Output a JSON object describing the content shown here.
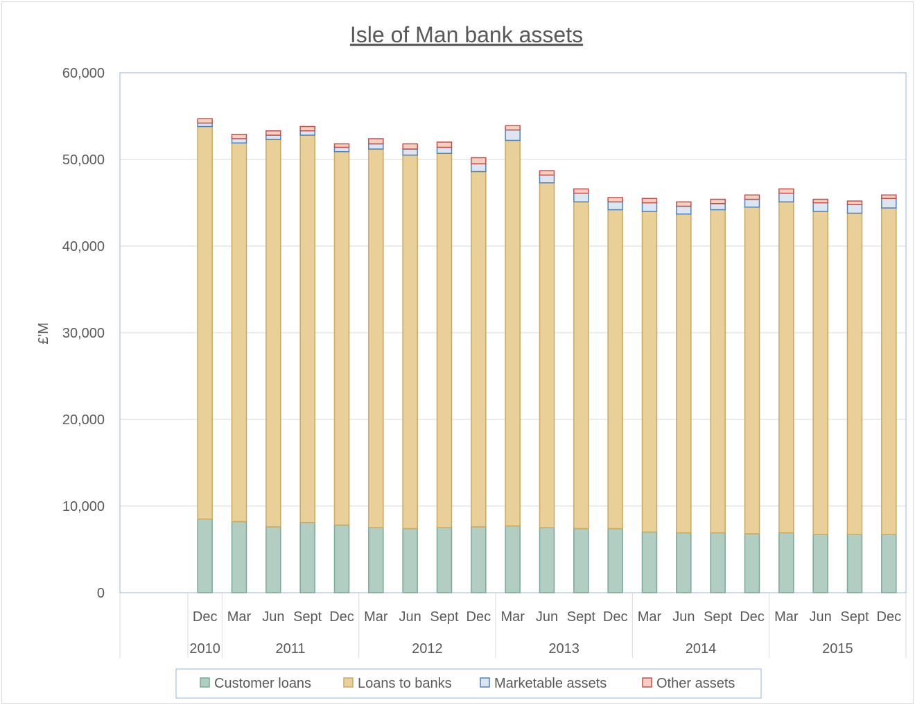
{
  "chart_data": {
    "type": "bar",
    "stacked": true,
    "title": "Isle of Man bank assets",
    "ylabel": "£'M",
    "xlabel": "",
    "ylim": [
      0,
      60000
    ],
    "yticks": [
      0,
      10000,
      20000,
      30000,
      40000,
      50000,
      60000
    ],
    "ytick_labels": [
      "0",
      "10,000",
      "20,000",
      "30,000",
      "40,000",
      "50,000",
      "60,000"
    ],
    "grid": true,
    "legend_position": "bottom",
    "categories": [
      "Dec",
      "Mar",
      "Jun",
      "Sept",
      "Dec",
      "Mar",
      "Jun",
      "Sept",
      "Dec",
      "Mar",
      "Jun",
      "Sept",
      "Dec",
      "Mar",
      "Jun",
      "Sept",
      "Dec",
      "Mar",
      "Jun",
      "Sept",
      "Dec"
    ],
    "year_groups": [
      {
        "label": "2010",
        "count": 1
      },
      {
        "label": "2011",
        "count": 4
      },
      {
        "label": "2012",
        "count": 4
      },
      {
        "label": "2013",
        "count": 4
      },
      {
        "label": "2014",
        "count": 4
      },
      {
        "label": "2015",
        "count": 4
      }
    ],
    "series": [
      {
        "name": "Customer loans",
        "color": "#b2cec3",
        "stroke": "#79a897",
        "values": [
          8500,
          8200,
          7600,
          8100,
          7800,
          7500,
          7400,
          7500,
          7600,
          7700,
          7500,
          7400,
          7400,
          7000,
          6900,
          6900,
          6800,
          6900,
          6700,
          6700,
          6700
        ]
      },
      {
        "name": "Loans to banks",
        "color": "#e9cf98",
        "stroke": "#c9a861",
        "values": [
          45300,
          43700,
          44700,
          44700,
          43100,
          43700,
          43100,
          43200,
          41000,
          44500,
          39800,
          37700,
          36800,
          37000,
          36800,
          37300,
          37700,
          38200,
          37300,
          37100,
          37700
        ]
      },
      {
        "name": "Marketable assets",
        "color": "#dce6f2",
        "stroke": "#4f81bd",
        "values": [
          400,
          500,
          500,
          500,
          500,
          600,
          700,
          700,
          900,
          1200,
          900,
          1000,
          900,
          1000,
          900,
          700,
          900,
          1000,
          1000,
          1000,
          1100
        ]
      },
      {
        "name": "Other assets",
        "color": "#f6cfbf",
        "stroke": "#c0504d",
        "values": [
          500,
          500,
          500,
          500,
          400,
          600,
          600,
          600,
          700,
          500,
          500,
          500,
          500,
          500,
          500,
          500,
          500,
          500,
          400,
          400,
          400
        ]
      }
    ]
  }
}
